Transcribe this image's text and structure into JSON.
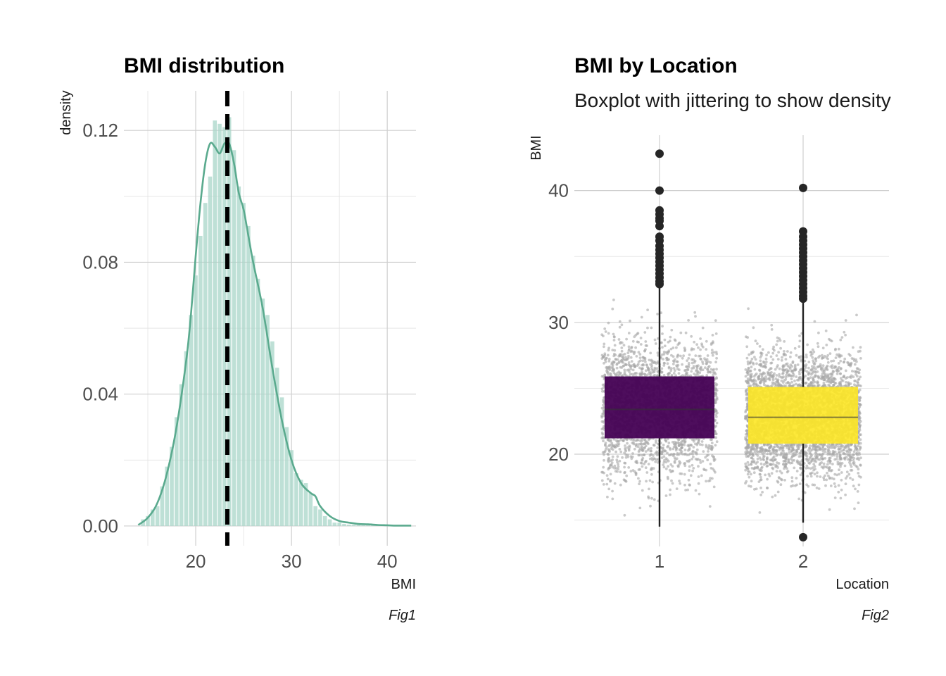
{
  "colors": {
    "hist_fill": "#a8d5c8",
    "density_line": "#5aaa8e",
    "mean_line": "#000000",
    "jitter": "#a6a6a6",
    "box_loc1": "#440154",
    "box_loc2": "#fde725",
    "outlier": "#262626"
  },
  "chart_data": [
    {
      "type": "bar",
      "title": "BMI distribution",
      "xlabel": "BMI",
      "ylabel": "density",
      "caption": "Fig1",
      "xlim": [
        12.5,
        43.0
      ],
      "ylim": [
        -0.006,
        0.132
      ],
      "x_ticks": [
        20,
        30,
        40
      ],
      "x_tick_labels": [
        "20",
        "30",
        "40"
      ],
      "y_ticks": [
        0.0,
        0.04,
        0.08,
        0.12
      ],
      "y_tick_labels": [
        "0.00",
        "0.04",
        "0.08",
        "0.12"
      ],
      "grid": true,
      "mean_line_x": 23.3,
      "histogram": {
        "bin_width": 0.5,
        "bin_centers": [
          14.5,
          15.0,
          15.5,
          16.0,
          16.5,
          17.0,
          17.5,
          18.0,
          18.5,
          19.0,
          19.5,
          20.0,
          20.5,
          21.0,
          21.5,
          22.0,
          22.5,
          23.0,
          23.5,
          24.0,
          24.5,
          25.0,
          25.5,
          26.0,
          26.5,
          27.0,
          27.5,
          28.0,
          28.5,
          29.0,
          29.5,
          30.0,
          30.5,
          31.0,
          31.5,
          32.0,
          32.5,
          33.0,
          33.5,
          34.0,
          34.5,
          35.0,
          35.5,
          36.0,
          36.5,
          37.0,
          37.5,
          38.0,
          38.5,
          39.0,
          39.5,
          40.0,
          40.5,
          41.0,
          41.5,
          42.0
        ],
        "densities": [
          0.002,
          0.003,
          0.005,
          0.006,
          0.012,
          0.018,
          0.024,
          0.033,
          0.043,
          0.053,
          0.064,
          0.076,
          0.088,
          0.098,
          0.106,
          0.123,
          0.122,
          0.121,
          0.124,
          0.114,
          0.103,
          0.098,
          0.091,
          0.082,
          0.075,
          0.069,
          0.064,
          0.056,
          0.048,
          0.039,
          0.03,
          0.023,
          0.016,
          0.014,
          0.013,
          0.01,
          0.006,
          0.005,
          0.003,
          0.002,
          0.001,
          0.001,
          0.0006,
          0.0004,
          0.0003,
          0.0003,
          0.0002,
          0.0002,
          0.0002,
          0.0002,
          0.0001,
          0.0001,
          0.0001,
          0.0001,
          0.0001,
          0.0001
        ]
      },
      "density_curve": {
        "x": [
          14.0,
          15.0,
          16.0,
          17.0,
          18.0,
          19.0,
          19.5,
          20.0,
          20.5,
          21.0,
          21.5,
          22.0,
          22.5,
          23.0,
          23.5,
          24.0,
          24.5,
          25.0,
          25.5,
          26.0,
          27.0,
          28.0,
          29.0,
          30.0,
          31.0,
          32.0,
          32.5,
          33.0,
          34.0,
          35.0,
          36.0,
          37.0,
          38.0,
          39.0,
          40.0,
          41.0,
          42.5
        ],
        "y": [
          0.0003,
          0.0025,
          0.007,
          0.016,
          0.03,
          0.05,
          0.064,
          0.082,
          0.098,
          0.11,
          0.116,
          0.115,
          0.113,
          0.116,
          0.116,
          0.11,
          0.101,
          0.096,
          0.088,
          0.08,
          0.066,
          0.048,
          0.032,
          0.02,
          0.013,
          0.01,
          0.009,
          0.006,
          0.003,
          0.0015,
          0.001,
          0.0006,
          0.0005,
          0.0003,
          0.0002,
          0.0001,
          0.0001
        ]
      }
    },
    {
      "type": "boxplot",
      "title": "BMI by Location",
      "subtitle": "Boxplot with jittering to show density",
      "xlabel": "Location",
      "ylabel": "BMI",
      "caption": "Fig2",
      "categories": [
        "1",
        "2"
      ],
      "ylim": [
        13.0,
        44.2
      ],
      "y_ticks": [
        20,
        30,
        40
      ],
      "y_tick_labels": [
        "20",
        "30",
        "40"
      ],
      "grid": true,
      "boxes": [
        {
          "category": "1",
          "q1": 21.2,
          "median": 23.4,
          "q3": 25.9,
          "whisker_low": 14.5,
          "whisker_high": 32.8
        },
        {
          "category": "2",
          "q1": 20.8,
          "median": 22.8,
          "q3": 25.1,
          "whisker_low": 14.8,
          "whisker_high": 31.6
        }
      ],
      "outliers": [
        {
          "category": "1",
          "values": [
            42.8,
            40.0,
            38.5,
            38.2,
            37.9,
            37.7,
            37.3,
            36.5,
            36.2,
            35.8,
            35.5,
            35.2,
            34.9,
            34.6,
            34.3,
            34.0,
            33.7,
            33.4,
            33.1,
            32.9
          ]
        },
        {
          "category": "2",
          "values": [
            40.2,
            36.9,
            36.5,
            36.2,
            35.9,
            35.6,
            35.3,
            35.0,
            34.7,
            34.4,
            34.1,
            33.8,
            33.5,
            33.2,
            32.9,
            32.6,
            32.3,
            32.0,
            31.8,
            13.7
          ]
        }
      ]
    }
  ]
}
